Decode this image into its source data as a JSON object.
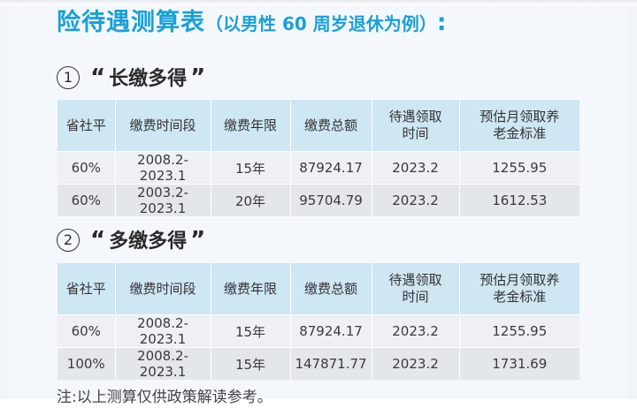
{
  "title": {
    "main": "险待遇测算表",
    "sub_open": "（以",
    "sub_bold": "男性 60 周岁",
    "sub_close": "退休为例）",
    "colon": ":"
  },
  "sections": [
    {
      "number": "1",
      "heading": "长缴多得",
      "headers": [
        "省社平",
        "缴费时间段",
        "缴费年限",
        "缴费总额",
        "待遇领取时间",
        "预估月领取养老金标准"
      ],
      "rows": [
        [
          "60%",
          "2008.2-2023.1",
          "15年",
          "87924.17",
          "2023.2",
          "1255.95"
        ],
        [
          "60%",
          "2003.2-2023.1",
          "20年",
          "95704.79",
          "2023.2",
          "1612.53"
        ]
      ]
    },
    {
      "number": "2",
      "heading": "多缴多得",
      "headers": [
        "省社平",
        "缴费时间段",
        "缴费年限",
        "缴费总额",
        "待遇领取时间",
        "预估月领取养老金标准"
      ],
      "rows": [
        [
          "60%",
          "2008.2-2023.1",
          "15年",
          "87924.17",
          "2023.2",
          "1255.95"
        ],
        [
          "100%",
          "2008.2-2023.1",
          "15年",
          "147871.77",
          "2023.2",
          "1731.69"
        ]
      ]
    }
  ],
  "note": "注:以上测算仅供政策解读参考。"
}
